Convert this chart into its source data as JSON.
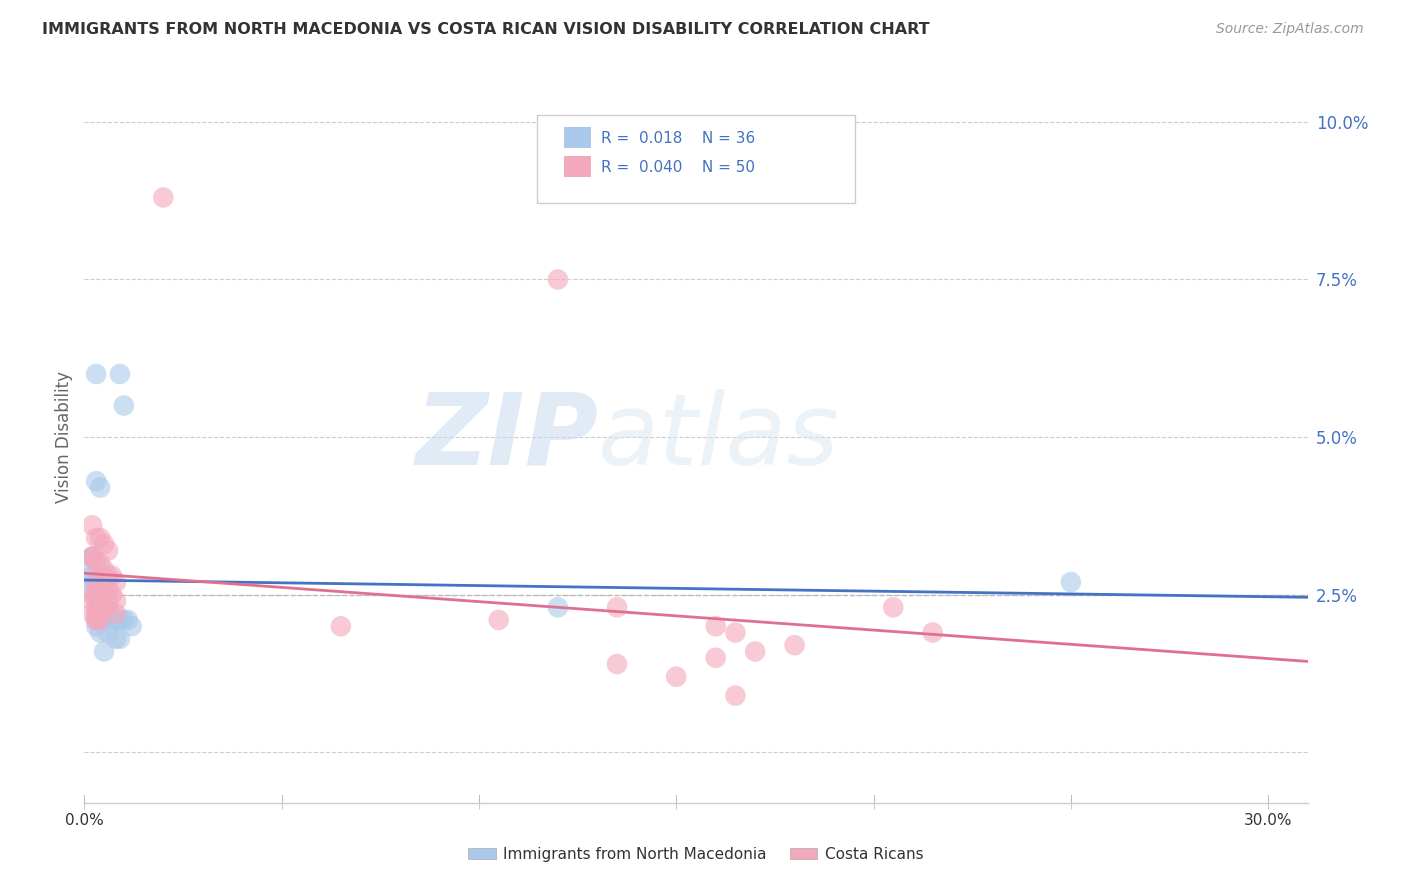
{
  "title": "IMMIGRANTS FROM NORTH MACEDONIA VS COSTA RICAN VISION DISABILITY CORRELATION CHART",
  "source": "Source: ZipAtlas.com",
  "ylabel": "Vision Disability",
  "y_ticks": [
    0.0,
    0.025,
    0.05,
    0.075,
    0.1
  ],
  "y_tick_labels": [
    "",
    "2.5%",
    "5.0%",
    "7.5%",
    "10.0%"
  ],
  "x_ticks": [
    0.0,
    0.05,
    0.1,
    0.15,
    0.2,
    0.25,
    0.3
  ],
  "x_tick_labels": [
    "0.0%",
    "",
    "",
    "",
    "",
    "",
    "30.0%"
  ],
  "legend_blue_r": "R =  0.018",
  "legend_blue_n": "N = 36",
  "legend_pink_r": "R =  0.040",
  "legend_pink_n": "N = 50",
  "legend_blue_label": "Immigrants from North Macedonia",
  "legend_pink_label": "Costa Ricans",
  "background_color": "#ffffff",
  "grid_color": "#cccccc",
  "title_color": "#333333",
  "watermark_zip": "ZIP",
  "watermark_atlas": "atlas",
  "blue_color": "#aac9ea",
  "pink_color": "#f4a8bc",
  "blue_line_color": "#4472c4",
  "pink_line_color": "#e07090",
  "blue_scatter": [
    [
      0.003,
      0.06
    ],
    [
      0.009,
      0.06
    ],
    [
      0.01,
      0.055
    ],
    [
      0.003,
      0.043
    ],
    [
      0.004,
      0.042
    ],
    [
      0.002,
      0.031
    ],
    [
      0.002,
      0.031
    ],
    [
      0.002,
      0.029
    ],
    [
      0.002,
      0.028
    ],
    [
      0.002,
      0.027
    ],
    [
      0.003,
      0.027
    ],
    [
      0.002,
      0.026
    ],
    [
      0.003,
      0.025
    ],
    [
      0.003,
      0.025
    ],
    [
      0.004,
      0.025
    ],
    [
      0.004,
      0.024
    ],
    [
      0.004,
      0.024
    ],
    [
      0.005,
      0.023
    ],
    [
      0.005,
      0.023
    ],
    [
      0.005,
      0.022
    ],
    [
      0.006,
      0.022
    ],
    [
      0.006,
      0.022
    ],
    [
      0.007,
      0.021
    ],
    [
      0.008,
      0.021
    ],
    [
      0.009,
      0.021
    ],
    [
      0.01,
      0.021
    ],
    [
      0.011,
      0.021
    ],
    [
      0.012,
      0.02
    ],
    [
      0.003,
      0.02
    ],
    [
      0.004,
      0.019
    ],
    [
      0.006,
      0.019
    ],
    [
      0.008,
      0.018
    ],
    [
      0.009,
      0.018
    ],
    [
      0.12,
      0.023
    ],
    [
      0.005,
      0.016
    ],
    [
      0.25,
      0.027
    ]
  ],
  "pink_scatter": [
    [
      0.02,
      0.088
    ],
    [
      0.12,
      0.075
    ],
    [
      0.002,
      0.036
    ],
    [
      0.003,
      0.034
    ],
    [
      0.004,
      0.034
    ],
    [
      0.005,
      0.033
    ],
    [
      0.006,
      0.032
    ],
    [
      0.002,
      0.031
    ],
    [
      0.002,
      0.031
    ],
    [
      0.003,
      0.03
    ],
    [
      0.004,
      0.03
    ],
    [
      0.005,
      0.029
    ],
    [
      0.006,
      0.028
    ],
    [
      0.007,
      0.028
    ],
    [
      0.008,
      0.027
    ],
    [
      0.003,
      0.027
    ],
    [
      0.004,
      0.027
    ],
    [
      0.005,
      0.026
    ],
    [
      0.006,
      0.026
    ],
    [
      0.007,
      0.025
    ],
    [
      0.002,
      0.025
    ],
    [
      0.003,
      0.025
    ],
    [
      0.004,
      0.025
    ],
    [
      0.005,
      0.024
    ],
    [
      0.006,
      0.024
    ],
    [
      0.008,
      0.024
    ],
    [
      0.002,
      0.024
    ],
    [
      0.003,
      0.023
    ],
    [
      0.004,
      0.023
    ],
    [
      0.005,
      0.023
    ],
    [
      0.006,
      0.023
    ],
    [
      0.002,
      0.022
    ],
    [
      0.003,
      0.022
    ],
    [
      0.008,
      0.022
    ],
    [
      0.003,
      0.021
    ],
    [
      0.004,
      0.021
    ],
    [
      0.135,
      0.023
    ],
    [
      0.105,
      0.021
    ],
    [
      0.003,
      0.021
    ],
    [
      0.065,
      0.02
    ],
    [
      0.16,
      0.02
    ],
    [
      0.165,
      0.019
    ],
    [
      0.17,
      0.016
    ],
    [
      0.205,
      0.023
    ],
    [
      0.215,
      0.019
    ],
    [
      0.18,
      0.017
    ],
    [
      0.16,
      0.015
    ],
    [
      0.135,
      0.014
    ],
    [
      0.15,
      0.012
    ],
    [
      0.165,
      0.009
    ]
  ],
  "xlim": [
    0.0,
    0.31
  ],
  "ylim": [
    -0.008,
    0.108
  ]
}
